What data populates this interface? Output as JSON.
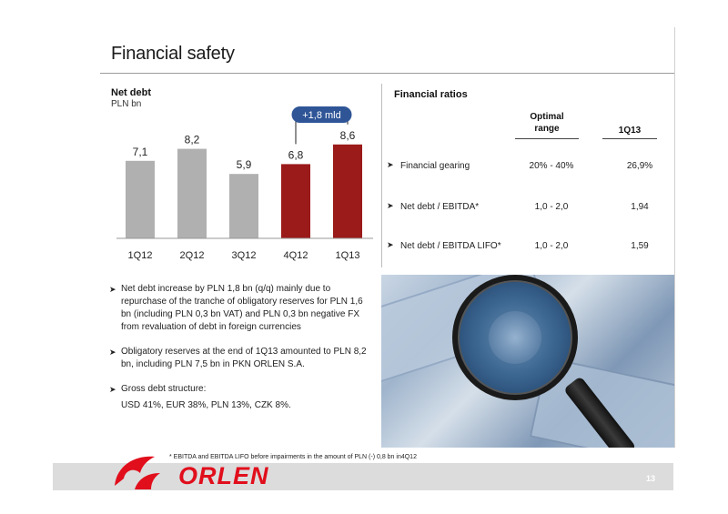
{
  "slide": {
    "title": "Financial safety",
    "page_number": "13",
    "footnote": "* EBITDA and EBITDA LIFO before impairments in the amount of PLN (-) 0,8 bn in4Q12",
    "logo_text": "ORLEN"
  },
  "net_debt": {
    "title": "Net debt",
    "unit": "PLN bn",
    "callout": "+1,8 mld"
  },
  "chart_data": {
    "type": "bar",
    "categories": [
      "1Q12",
      "2Q12",
      "3Q12",
      "4Q12",
      "1Q13"
    ],
    "values": [
      7.1,
      8.2,
      5.9,
      6.8,
      8.6
    ],
    "value_labels": [
      "7,1",
      "8,2",
      "5,9",
      "6,8",
      "8,6"
    ],
    "colors": [
      "#b0b0b0",
      "#b0b0b0",
      "#b0b0b0",
      "#9b1a1a",
      "#9b1a1a"
    ],
    "title": "Net debt",
    "ylabel": "PLN bn",
    "ylim": [
      0,
      10
    ],
    "grid": false,
    "annotation": "+1,8 mld"
  },
  "ratios": {
    "title": "Financial ratios",
    "col_optimal_line1": "Optimal",
    "col_optimal_line2": "range",
    "col_period": "1Q13",
    "rows": [
      {
        "label": "Financial gearing",
        "optimal": "20% - 40%",
        "value": "26,9%"
      },
      {
        "label": "Net debt / EBITDA*",
        "optimal": "1,0 - 2,0",
        "value": "1,94"
      },
      {
        "label": "Net debt / EBITDA LIFO*",
        "optimal": "1,0 - 2,0",
        "value": "1,59"
      }
    ]
  },
  "bullets": [
    {
      "text": "Net debt increase by PLN 1,8 bn (q/q) mainly due to repurchase of the tranche of obligatory reserves for PLN 1,6 bn (including PLN 0,3 bn VAT) and PLN 0,3 bn negative FX from revaluation of debt in foreign currencies",
      "sub": ""
    },
    {
      "text": "Obligatory reserves at the end of 1Q13 amounted to PLN 8,2 bn, including PLN 7,5 bn in PKN ORLEN S.A.",
      "sub": ""
    },
    {
      "text": "Gross debt structure:",
      "sub": "USD 41%, EUR 38%, PLN 13%, CZK 8%."
    }
  ],
  "colors": {
    "brand_red": "#e10e1c",
    "bar_grey": "#b0b0b0",
    "bar_red": "#9b1a1a",
    "callout_blue": "#2f5597"
  },
  "icons": {
    "bullet": "arrow-bullet-icon",
    "logo": "orlen-eagle-logo"
  }
}
